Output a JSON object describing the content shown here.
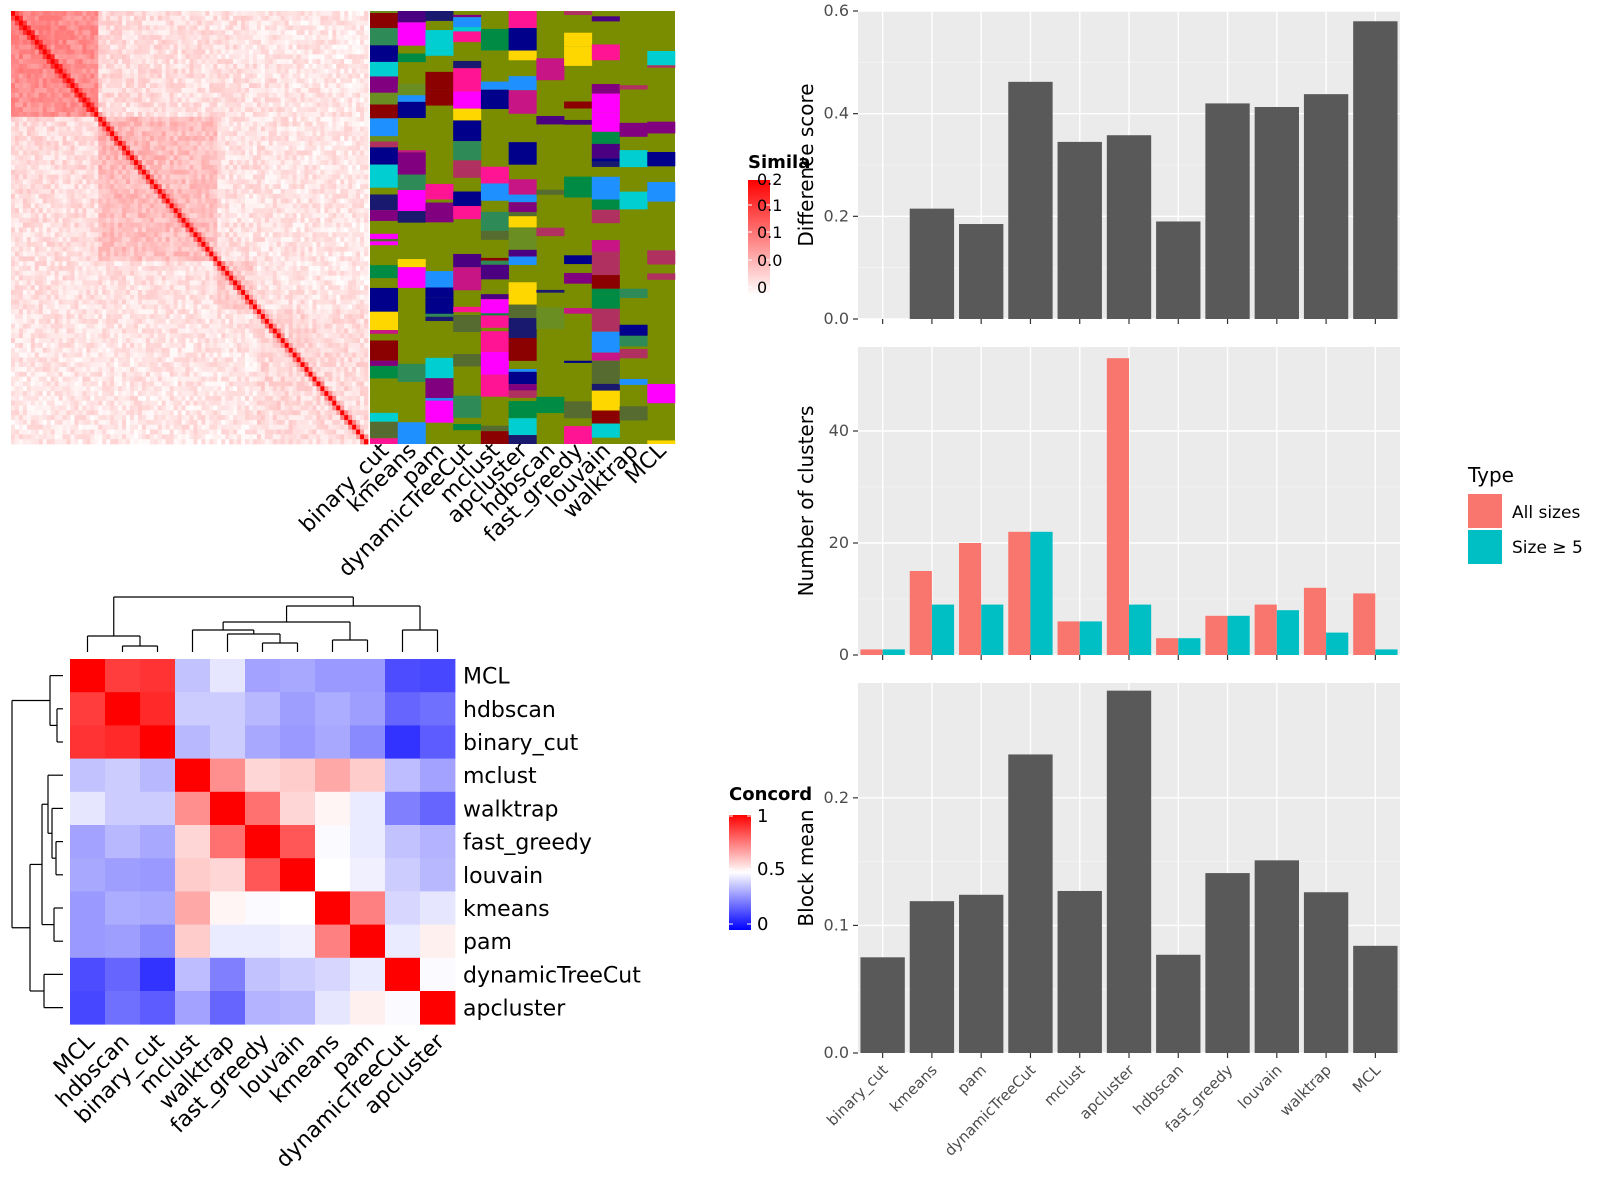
{
  "colors": {
    "panel_bg": "#ebebeb",
    "grid_major": "#ffffff",
    "bar_dark": "#595959",
    "all_sizes": "#f8766d",
    "size_ge5": "#00bfc4",
    "heat_red": "#ff0000",
    "heat_blue": "#0000ff",
    "olive": "#7a8c00"
  },
  "methods_order": [
    "binary_cut",
    "kmeans",
    "pam",
    "dynamicTreeCut",
    "mclust",
    "apcluster",
    "hdbscan",
    "fast_greedy",
    "louvain",
    "walktrap",
    "MCL"
  ],
  "similarity_legend": {
    "title": "Simila",
    "ticks": [
      "0.2",
      "0.1",
      "0.1",
      "0.0",
      "0"
    ]
  },
  "concordance_legend": {
    "title": "Concord",
    "ticks": [
      "1",
      "0.5",
      "0"
    ]
  },
  "concordance": {
    "labels": [
      "MCL",
      "hdbscan",
      "binary_cut",
      "mclust",
      "walktrap",
      "fast_greedy",
      "louvain",
      "kmeans",
      "pam",
      "dynamicTreeCut",
      "apcluster"
    ],
    "matrix": [
      [
        1.0,
        0.88,
        0.9,
        0.38,
        0.45,
        0.32,
        0.33,
        0.3,
        0.3,
        0.15,
        0.14
      ],
      [
        0.88,
        1.0,
        0.92,
        0.4,
        0.4,
        0.36,
        0.31,
        0.34,
        0.31,
        0.2,
        0.22
      ],
      [
        0.9,
        0.92,
        1.0,
        0.36,
        0.4,
        0.33,
        0.3,
        0.33,
        0.27,
        0.1,
        0.18
      ],
      [
        0.38,
        0.4,
        0.36,
        1.0,
        0.72,
        0.58,
        0.6,
        0.67,
        0.6,
        0.37,
        0.32
      ],
      [
        0.45,
        0.4,
        0.4,
        0.72,
        1.0,
        0.78,
        0.58,
        0.52,
        0.46,
        0.25,
        0.2
      ],
      [
        0.32,
        0.36,
        0.33,
        0.58,
        0.78,
        1.0,
        0.83,
        0.49,
        0.46,
        0.38,
        0.35
      ],
      [
        0.33,
        0.31,
        0.3,
        0.6,
        0.58,
        0.83,
        1.0,
        0.5,
        0.47,
        0.4,
        0.36
      ],
      [
        0.3,
        0.34,
        0.33,
        0.67,
        0.52,
        0.49,
        0.5,
        1.0,
        0.75,
        0.42,
        0.45
      ],
      [
        0.3,
        0.31,
        0.27,
        0.6,
        0.46,
        0.46,
        0.47,
        0.75,
        1.0,
        0.46,
        0.53
      ],
      [
        0.15,
        0.2,
        0.1,
        0.37,
        0.25,
        0.38,
        0.4,
        0.42,
        0.46,
        1.0,
        0.49
      ],
      [
        0.14,
        0.22,
        0.18,
        0.32,
        0.2,
        0.35,
        0.36,
        0.45,
        0.53,
        0.49,
        1.0
      ]
    ]
  },
  "heatmap_col_labels": [
    "binary_cut",
    "kmeans",
    "pam",
    "dynamicTreeCut",
    "mclust",
    "apcluster",
    "hdbscan",
    "fast_greedy",
    "louvain",
    "walktrap",
    "MCL"
  ],
  "chart_data": [
    {
      "type": "bar",
      "categories": [
        "binary_cut",
        "kmeans",
        "pam",
        "dynamicTreeCut",
        "mclust",
        "apcluster",
        "hdbscan",
        "fast_greedy",
        "louvain",
        "walktrap",
        "MCL"
      ],
      "values": [
        0.0,
        0.215,
        0.185,
        0.462,
        0.345,
        0.358,
        0.19,
        0.42,
        0.413,
        0.438,
        0.58
      ],
      "xlabel": "",
      "ylabel": "Difference score",
      "ylim": [
        0,
        0.6
      ],
      "yticks": [
        "0.0",
        "0.2",
        "0.4",
        "0.6"
      ],
      "ytick_values": [
        0,
        0.2,
        0.4,
        0.6
      ]
    },
    {
      "type": "bar",
      "categories": [
        "binary_cut",
        "kmeans",
        "pam",
        "dynamicTreeCut",
        "mclust",
        "apcluster",
        "hdbscan",
        "fast_greedy",
        "louvain",
        "walktrap",
        "MCL"
      ],
      "series": [
        {
          "name": "All sizes",
          "values": [
            1,
            15,
            20,
            22,
            6,
            53,
            3,
            7,
            9,
            12,
            11
          ]
        },
        {
          "name": "Size ≥ 5",
          "values": [
            1,
            9,
            9,
            22,
            6,
            9,
            3,
            7,
            8,
            4,
            1
          ]
        }
      ],
      "ylabel": "Number of clusters",
      "ylim": [
        0,
        55
      ],
      "yticks": [
        "0",
        "20",
        "40"
      ],
      "ytick_values": [
        0,
        20,
        40
      ],
      "legend_title": "Type",
      "legend_position": "right"
    },
    {
      "type": "bar",
      "categories": [
        "binary_cut",
        "kmeans",
        "pam",
        "dynamicTreeCut",
        "mclust",
        "apcluster",
        "hdbscan",
        "fast_greedy",
        "louvain",
        "walktrap",
        "MCL"
      ],
      "values": [
        0.075,
        0.119,
        0.124,
        0.234,
        0.127,
        0.284,
        0.077,
        0.141,
        0.151,
        0.126,
        0.084
      ],
      "ylabel": "Block mean",
      "ylim": [
        0,
        0.29
      ],
      "yticks": [
        "0.0",
        "0.1",
        "0.2"
      ],
      "ytick_values": [
        0,
        0.1,
        0.2
      ]
    }
  ]
}
